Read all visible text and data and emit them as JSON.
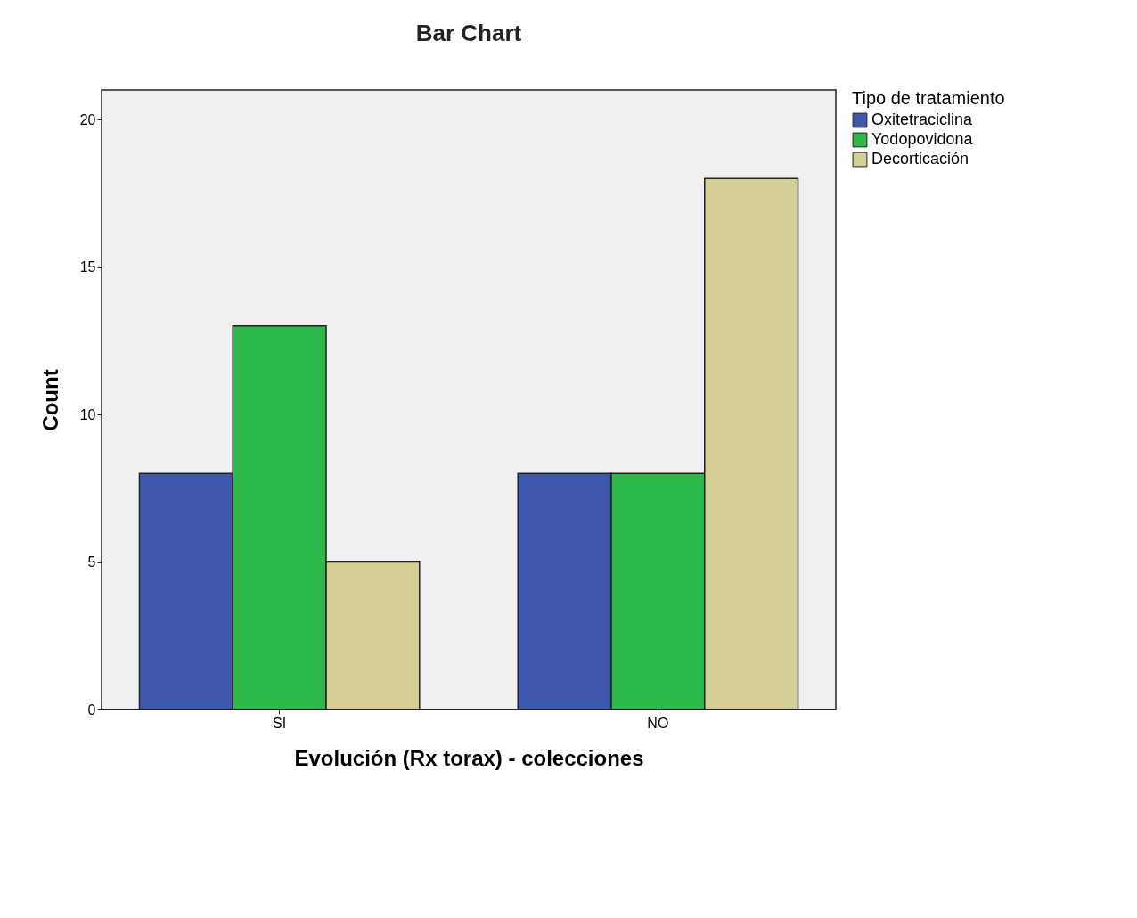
{
  "chart_data": {
    "type": "bar",
    "title": "Bar Chart",
    "xlabel": "Evolución (Rx torax) - colecciones",
    "ylabel": "Count",
    "legend_title": "Tipo de tratamiento",
    "categories": [
      "SI",
      "NO"
    ],
    "series": [
      {
        "name": "Oxitetraciclina",
        "color": "#3e58ac",
        "values": [
          8,
          8
        ]
      },
      {
        "name": "Yodopovidona",
        "color": "#2db84a",
        "values": [
          13,
          8
        ]
      },
      {
        "name": "Decorticación",
        "color": "#d4cd94",
        "values": [
          5,
          18
        ]
      }
    ],
    "ylim": [
      0,
      21
    ],
    "yticks": [
      0,
      5,
      10,
      15,
      20
    ],
    "grid": false,
    "legend": "right"
  }
}
